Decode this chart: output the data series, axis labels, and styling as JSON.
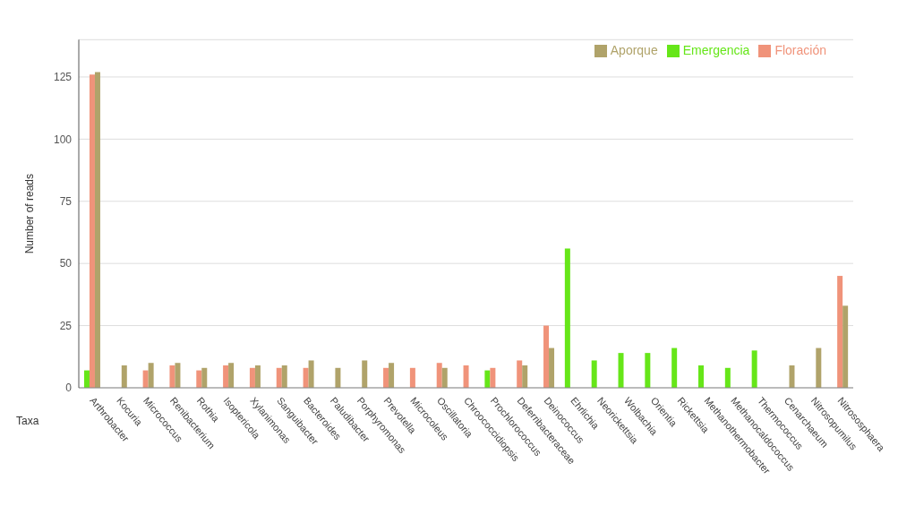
{
  "chart_data": {
    "type": "bar",
    "ylabel": "Number of reads",
    "xlabel": "Taxa",
    "categories": [
      "Arthrobacter",
      "Kocuria",
      "Micrococcus",
      "Renibacterium",
      "Rothia",
      "Isoptericola",
      "Xylanimonas",
      "Sanguibacter",
      "Bacteroides",
      "Paludibacter",
      "Porphyromonas",
      "Prevotella",
      "Microcoleus",
      "Oscillatoria",
      "Chroococcidiopsis",
      "Prochlorococcus",
      "Deferribacteraceae",
      "Deinococcus",
      "Ehrlichia",
      "Neorickettsia",
      "Wolbachia",
      "Orientia",
      "Rickettsia",
      "Methanothermobacter",
      "Methanocaldococcus",
      "Thermococcus",
      "Cenarchaeum",
      "Nitrosopumilus",
      "Nitrososphaera"
    ],
    "series": [
      {
        "name": "Emergencia",
        "color": "#66e619",
        "values": [
          7,
          0,
          0,
          0,
          0,
          0,
          0,
          0,
          0,
          0,
          0,
          0,
          0,
          0,
          0,
          7,
          0,
          0,
          56,
          11,
          14,
          14,
          16,
          9,
          8,
          15,
          0,
          0,
          0
        ]
      },
      {
        "name": "Floración",
        "color": "#f0937a",
        "values": [
          126,
          0,
          7,
          9,
          7,
          9,
          8,
          8,
          8,
          0,
          0,
          8,
          8,
          10,
          9,
          8,
          11,
          25,
          0,
          0,
          0,
          0,
          0,
          0,
          0,
          0,
          0,
          0,
          45
        ]
      },
      {
        "name": "Aporque",
        "color": "#b0a36a",
        "values": [
          127,
          9,
          10,
          10,
          8,
          10,
          9,
          9,
          11,
          8,
          11,
          10,
          0,
          8,
          0,
          0,
          9,
          16,
          0,
          0,
          0,
          0,
          0,
          0,
          0,
          0,
          9,
          16,
          33
        ]
      }
    ],
    "ylim": [
      0,
      140
    ],
    "yticks": [
      0,
      25,
      50,
      75,
      100,
      125
    ],
    "grid": "y",
    "legend": "top right"
  }
}
